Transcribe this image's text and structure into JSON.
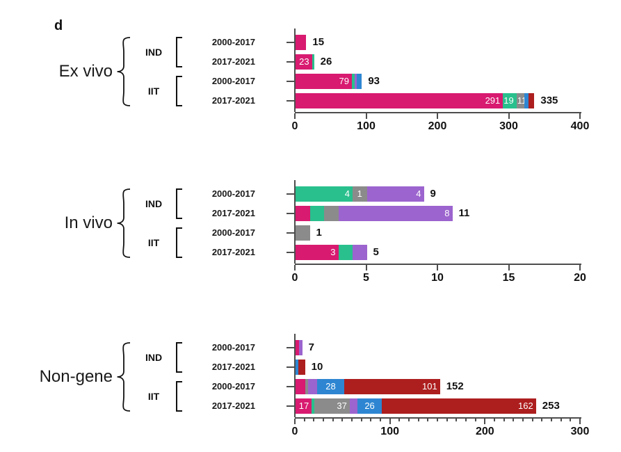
{
  "panel_label": "d",
  "colors": {
    "pink": "#D81A70",
    "teal": "#29C08D",
    "gray": "#8B8B8B",
    "purple": "#9C64CE",
    "blue": "#2E86D2",
    "darkred": "#AD1E1E",
    "axis": "#4d4d4d"
  },
  "chart_data": [
    {
      "type": "bar",
      "orientation": "horizontal",
      "group_label": "Ex vivo",
      "subgroups": [
        "IND",
        "IIT"
      ],
      "xlim": [
        0,
        400
      ],
      "ticks": [
        0,
        100,
        200,
        300,
        400
      ],
      "minor_tick_step": null,
      "rows": [
        {
          "subgroup": "IND",
          "period": "2000-2017",
          "total": 15,
          "segments": [
            {
              "color": "pink",
              "value": 15
            }
          ]
        },
        {
          "subgroup": "IND",
          "period": "2017-2021",
          "total": 26,
          "segments": [
            {
              "color": "pink",
              "value": 23,
              "label": "23"
            },
            {
              "color": "teal",
              "value": 3
            }
          ]
        },
        {
          "subgroup": "IIT",
          "period": "2000-2017",
          "total": 93,
          "segments": [
            {
              "color": "pink",
              "value": 79,
              "label": "79"
            },
            {
              "color": "teal",
              "value": 4
            },
            {
              "color": "purple",
              "value": 3
            },
            {
              "color": "blue",
              "value": 7
            }
          ]
        },
        {
          "subgroup": "IIT",
          "period": "2017-2021",
          "total": 335,
          "segments": [
            {
              "color": "pink",
              "value": 291,
              "label": "291"
            },
            {
              "color": "teal",
              "value": 19,
              "label": "19"
            },
            {
              "color": "gray",
              "value": 11,
              "label": "11",
              "align": "left"
            },
            {
              "color": "blue",
              "value": 6
            },
            {
              "color": "darkred",
              "value": 8
            }
          ]
        }
      ]
    },
    {
      "type": "bar",
      "orientation": "horizontal",
      "group_label": "In vivo",
      "subgroups": [
        "IND",
        "IIT"
      ],
      "xlim": [
        0,
        20
      ],
      "ticks": [
        0,
        5,
        10,
        15,
        20
      ],
      "minor_tick_step": null,
      "rows": [
        {
          "subgroup": "IND",
          "period": "2000-2017",
          "total": 9,
          "segments": [
            {
              "color": "teal",
              "value": 4,
              "label": "4"
            },
            {
              "color": "gray",
              "value": 1,
              "label": "1",
              "align": "center"
            },
            {
              "color": "purple",
              "value": 4,
              "label": "4"
            }
          ]
        },
        {
          "subgroup": "IND",
          "period": "2017-2021",
          "total": 11,
          "segments": [
            {
              "color": "pink",
              "value": 1
            },
            {
              "color": "teal",
              "value": 1
            },
            {
              "color": "gray",
              "value": 1
            },
            {
              "color": "purple",
              "value": 8,
              "label": "8"
            }
          ]
        },
        {
          "subgroup": "IIT",
          "period": "2000-2017",
          "total": 1,
          "segments": [
            {
              "color": "gray",
              "value": 1
            }
          ]
        },
        {
          "subgroup": "IIT",
          "period": "2017-2021",
          "total": 5,
          "segments": [
            {
              "color": "pink",
              "value": 3,
              "label": "3"
            },
            {
              "color": "teal",
              "value": 1
            },
            {
              "color": "purple",
              "value": 1
            }
          ]
        }
      ]
    },
    {
      "type": "bar",
      "orientation": "horizontal",
      "group_label": "Non-gene",
      "subgroups": [
        "IND",
        "IIT"
      ],
      "xlim": [
        0,
        300
      ],
      "ticks": [
        0,
        100,
        200,
        300
      ],
      "minor_tick_step": 10,
      "rows": [
        {
          "subgroup": "IND",
          "period": "2000-2017",
          "total": 7,
          "segments": [
            {
              "color": "pink",
              "value": 4
            },
            {
              "color": "purple",
              "value": 3
            }
          ]
        },
        {
          "subgroup": "IND",
          "period": "2017-2021",
          "total": 10,
          "segments": [
            {
              "color": "blue",
              "value": 3
            },
            {
              "color": "darkred",
              "value": 7
            }
          ]
        },
        {
          "subgroup": "IIT",
          "period": "2000-2017",
          "total": 152,
          "segments": [
            {
              "color": "pink",
              "value": 10
            },
            {
              "color": "gray",
              "value": 3
            },
            {
              "color": "purple",
              "value": 10
            },
            {
              "color": "blue",
              "value": 28,
              "label": "28",
              "align": "center"
            },
            {
              "color": "darkred",
              "value": 101,
              "label": "101"
            }
          ]
        },
        {
          "subgroup": "IIT",
          "period": "2017-2021",
          "total": 253,
          "segments": [
            {
              "color": "pink",
              "value": 17,
              "label": "17"
            },
            {
              "color": "teal",
              "value": 3
            },
            {
              "color": "gray",
              "value": 37,
              "label": "37"
            },
            {
              "color": "purple",
              "value": 8
            },
            {
              "color": "blue",
              "value": 26,
              "label": "26",
              "align": "center"
            },
            {
              "color": "darkred",
              "value": 162,
              "label": "162"
            }
          ]
        }
      ]
    }
  ]
}
